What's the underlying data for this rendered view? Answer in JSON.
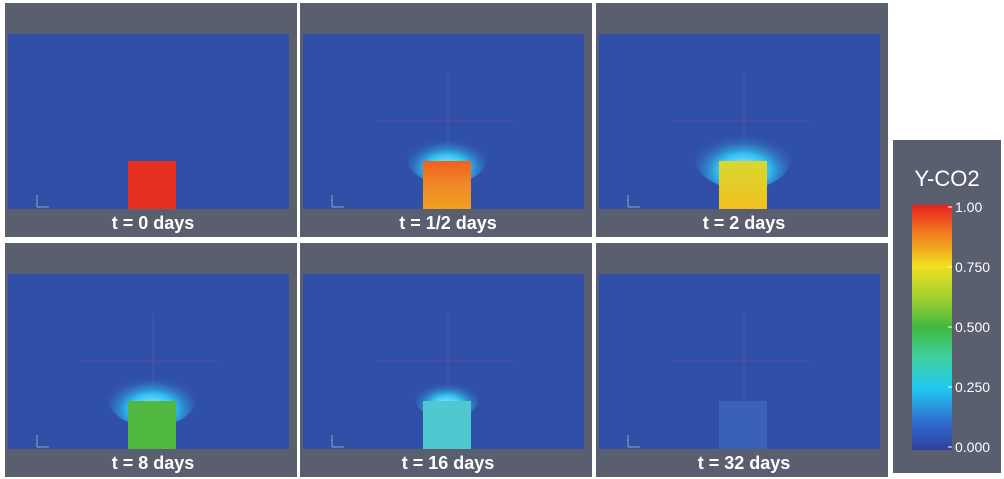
{
  "panels": [
    {
      "label": "t = 0 days"
    },
    {
      "label": "t = 1/2 days"
    },
    {
      "label": "t = 2 days"
    },
    {
      "label": "t = 8 days"
    },
    {
      "label": "t = 16 days"
    },
    {
      "label": "t = 32 days"
    }
  ],
  "colorbar": {
    "title": "Y-CO2",
    "ticks": [
      "1.00",
      "0.750",
      "0.500",
      "0.250",
      "0.000"
    ]
  }
}
